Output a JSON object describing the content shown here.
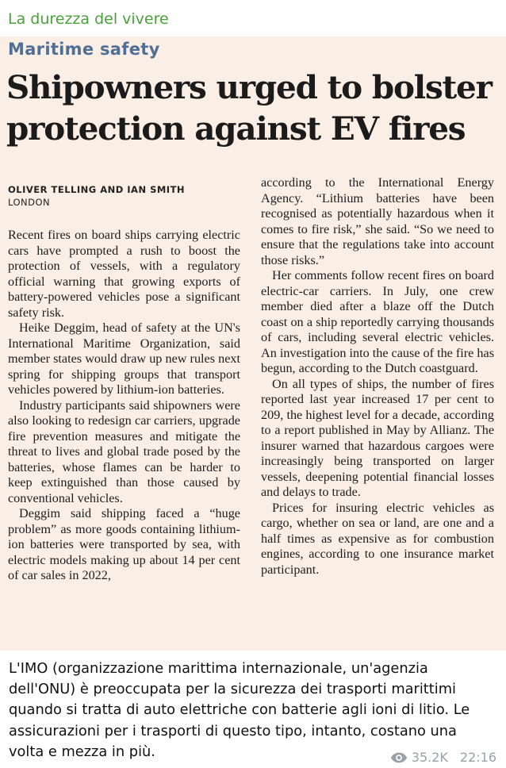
{
  "channel": {
    "name": "La durezza del vivere"
  },
  "article": {
    "section": "Maritime safety",
    "headline": "Shipowners urged to bolster protection against EV fires",
    "byline": "OLIVER TELLING AND IAN SMITH",
    "dateline": "LONDON",
    "left_column": [
      "Recent fires on board ships carrying electric cars have prompted a rush to boost the protection of vessels, with a regulatory official warning that growing exports of battery-powered vehicles pose a significant safety risk.",
      "Heike Deggim, head of safety at the UN's International Maritime Organization, said member states would draw up new rules next spring for shipping groups that transport vehicles powered by lithium-ion batteries.",
      "Industry participants said shipowners were also looking to redesign car carriers, upgrade fire prevention measures and mitigate the threat to lives and global trade posed by the batteries, whose flames can be harder to keep extinguished than those caused by conventional vehicles.",
      "Deggim said shipping faced a “huge problem” as more goods containing lithium-ion batteries were transported by sea, with electric models making up about 14 per cent of car sales in 2022,"
    ],
    "right_column": [
      "according to the International Energy Agency. “Lithium batteries have been recognised as potentially hazardous when it comes to fire risk,” she said. “So we need to ensure that the regulations take into account those risks.”",
      "Her comments follow recent fires on board electric-car carriers. In July, one crew member died after a blaze off the Dutch coast on a ship reportedly carrying thousands of cars, including several electric vehicles. An investigation into the cause of the fire has begun, according to the Dutch coastguard.",
      "On all types of ships, the number of fires reported last year increased 17 per cent to 209, the highest level for a decade, according to a report published in May by Allianz. The insurer warned that hazardous cargoes were increasingly being transported on larger vessels, deepening potential financial losses and delays to trade.",
      "Prices for insuring electric vehicles as cargo, whether on sea or land, are one and a half times as expensive as for combustion engines, according to one insurance market participant."
    ]
  },
  "caption": "L'IMO (organizzazione marittima internazionale, un'agenzia dell'ONU) è preoccupata per la sicurezza dei trasporti marittimi quando si tratta di auto elettriche con batterie agli ioni di litio. Le assicurazioni per i trasporti di questo tipo, intanto, costano una volta e mezza in più.",
  "meta": {
    "views": "35.2K",
    "time": "22:16",
    "icon": "eye-icon"
  },
  "colors": {
    "channel": "#4aa13a",
    "section": "#4f6f94",
    "paper": "#fbeee5",
    "meta": "#9aa0a6"
  }
}
